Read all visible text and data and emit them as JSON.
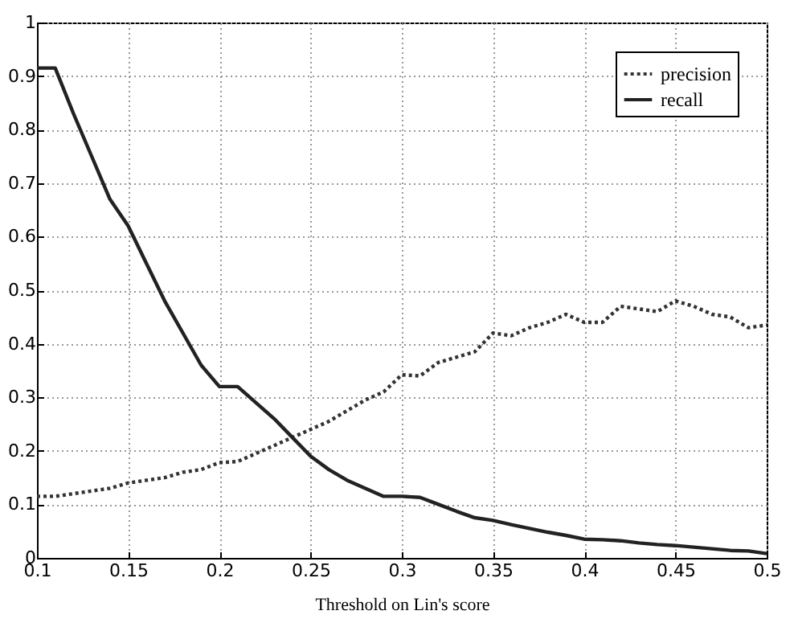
{
  "chart_data": {
    "type": "line",
    "xlabel": "Threshold on Lin's score",
    "x": [
      0.1,
      0.11,
      0.12,
      0.13,
      0.14,
      0.15,
      0.16,
      0.17,
      0.18,
      0.19,
      0.2,
      0.21,
      0.22,
      0.23,
      0.24,
      0.25,
      0.26,
      0.27,
      0.28,
      0.29,
      0.3,
      0.31,
      0.32,
      0.33,
      0.34,
      0.35,
      0.36,
      0.37,
      0.38,
      0.39,
      0.4,
      0.41,
      0.42,
      0.43,
      0.44,
      0.45,
      0.46,
      0.47,
      0.48,
      0.49,
      0.5
    ],
    "series": [
      {
        "name": "precision",
        "color": "#333333",
        "line_style": "dotted",
        "values": [
          0.115,
          0.115,
          0.12,
          0.125,
          0.13,
          0.14,
          0.145,
          0.15,
          0.16,
          0.165,
          0.178,
          0.18,
          0.195,
          0.21,
          0.225,
          0.24,
          0.255,
          0.275,
          0.295,
          0.31,
          0.342,
          0.34,
          0.365,
          0.375,
          0.385,
          0.42,
          0.415,
          0.43,
          0.44,
          0.455,
          0.44,
          0.44,
          0.47,
          0.465,
          0.46,
          0.48,
          0.47,
          0.455,
          0.45,
          0.43,
          0.435
        ]
      },
      {
        "name": "recall",
        "color": "#222222",
        "line_style": "solid",
        "values": [
          0.915,
          0.915,
          0.83,
          0.75,
          0.67,
          0.62,
          0.55,
          0.48,
          0.42,
          0.36,
          0.32,
          0.32,
          0.29,
          0.26,
          0.225,
          0.19,
          0.165,
          0.145,
          0.13,
          0.115,
          0.115,
          0.113,
          0.1,
          0.087,
          0.075,
          0.07,
          0.062,
          0.055,
          0.048,
          0.042,
          0.035,
          0.034,
          0.032,
          0.028,
          0.025,
          0.023,
          0.02,
          0.017,
          0.014,
          0.013,
          0.008
        ]
      }
    ],
    "xlim": [
      0.1,
      0.5
    ],
    "xticks": [
      0.1,
      0.15,
      0.2,
      0.25,
      0.3,
      0.35,
      0.4,
      0.45,
      0.5
    ],
    "ylim": [
      0,
      1
    ],
    "yticks": [
      0,
      0.1,
      0.2,
      0.3,
      0.4,
      0.5,
      0.6,
      0.7,
      0.8,
      0.9,
      1
    ],
    "grid": true,
    "legend": "top right"
  }
}
